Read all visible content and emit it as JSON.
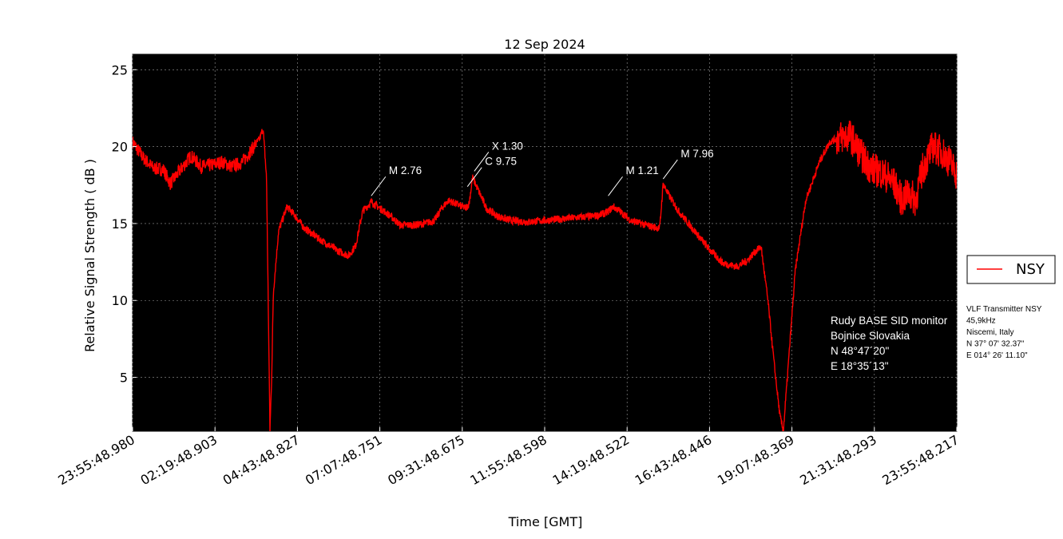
{
  "chart_data": {
    "type": "line",
    "title": "12 Sep 2024",
    "xlabel": "Time [GMT]",
    "ylabel": "Relative Signal Strength ( dB )",
    "ylim": [
      1.5,
      26
    ],
    "xlim": [
      0,
      24
    ],
    "y_ticks": [
      5,
      10,
      15,
      20,
      25
    ],
    "x_tick_positions": [
      0,
      2.4,
      4.8,
      7.2,
      9.6,
      12,
      14.4,
      16.8,
      19.2,
      21.6,
      24
    ],
    "x_tick_labels": [
      "23:55:48.980",
      "02:19:48.903",
      "04:43:48.827",
      "07:07:48.751",
      "09:31:48.675",
      "11:55:48.598",
      "14:19:48.522",
      "16:43:48.446",
      "19:07:48.369",
      "21:31:48.293",
      "23:55:48.217"
    ],
    "grid": true,
    "legend_position": "outside-right",
    "background_color": "#000000",
    "series": [
      {
        "name": "NSY",
        "color": "#ff0000",
        "noise": 0.25,
        "x": [
          0,
          0.3,
          0.6,
          0.9,
          1.1,
          1.4,
          1.7,
          2.0,
          2.3,
          2.6,
          2.9,
          3.2,
          3.5,
          3.7,
          3.8,
          3.9,
          3.95,
          4.0,
          4.05,
          4.1,
          4.25,
          4.5,
          4.7,
          5.0,
          5.5,
          6.0,
          6.3,
          6.5,
          6.7,
          6.95,
          7.2,
          7.5,
          7.8,
          8.2,
          8.5,
          8.8,
          9.0,
          9.2,
          9.4,
          9.6,
          9.7,
          9.8,
          9.9,
          10.1,
          10.3,
          10.6,
          11.0,
          11.5,
          12.0,
          12.5,
          13.0,
          13.5,
          13.8,
          14.0,
          14.3,
          14.5,
          14.8,
          15.1,
          15.35,
          15.45,
          15.6,
          15.9,
          16.3,
          16.8,
          17.2,
          17.6,
          17.9,
          18.1,
          18.3,
          18.5,
          18.7,
          18.85,
          18.95,
          19.05,
          19.3,
          19.6,
          20.0,
          20.3,
          20.6,
          20.9,
          21.2,
          21.5,
          21.8,
          22.0,
          22.2,
          22.4,
          22.6,
          22.8,
          23.0,
          23.3,
          23.6,
          23.8,
          24.0
        ],
        "values": [
          20.3,
          19.3,
          18.6,
          18.5,
          17.6,
          18.5,
          19.4,
          18.7,
          18.8,
          19.0,
          18.7,
          19.0,
          19.9,
          20.5,
          21.2,
          18.0,
          10.0,
          1.5,
          5.0,
          10.5,
          14.5,
          16.1,
          15.6,
          14.7,
          13.9,
          13.2,
          12.9,
          13.6,
          15.8,
          16.4,
          16.0,
          15.5,
          14.9,
          14.9,
          15.0,
          15.2,
          16.0,
          16.5,
          16.3,
          16.1,
          16.0,
          16.3,
          18.0,
          17.0,
          16.0,
          15.5,
          15.2,
          15.1,
          15.2,
          15.3,
          15.4,
          15.5,
          15.7,
          16.1,
          15.6,
          15.2,
          15.0,
          14.8,
          14.7,
          17.6,
          16.9,
          15.8,
          14.7,
          13.3,
          12.4,
          12.2,
          12.6,
          13.1,
          13.5,
          10.0,
          5.5,
          2.5,
          1.5,
          4.5,
          12.0,
          16.5,
          19.0,
          20.3,
          20.6,
          20.7,
          19.5,
          18.6,
          18.3,
          18.0,
          17.5,
          16.5,
          17.0,
          16.5,
          18.5,
          20.0,
          19.6,
          19.0,
          18.2
        ]
      }
    ],
    "annotations": [
      {
        "text": "M 2.76",
        "x": 6.95,
        "y": 16.8
      },
      {
        "text": "C 9.75",
        "x": 9.75,
        "y": 17.4
      },
      {
        "text": "X 1.30",
        "x": 9.95,
        "y": 18.4
      },
      {
        "text": "M 1.21",
        "x": 13.85,
        "y": 16.8
      },
      {
        "text": "M 7.96",
        "x": 15.45,
        "y": 17.9
      }
    ]
  },
  "station_info": [
    "Rudy BASE SID monitor",
    "Bojnice Slovakia",
    "N 48°47´20\"",
    "E 18°35´13\""
  ],
  "transmitter_info": [
    "VLF Transmitter NSY",
    "45,9kHz",
    "Niscemi, Italy",
    "N 37° 07' 32.37\"",
    "E 014° 26' 11.10\""
  ]
}
